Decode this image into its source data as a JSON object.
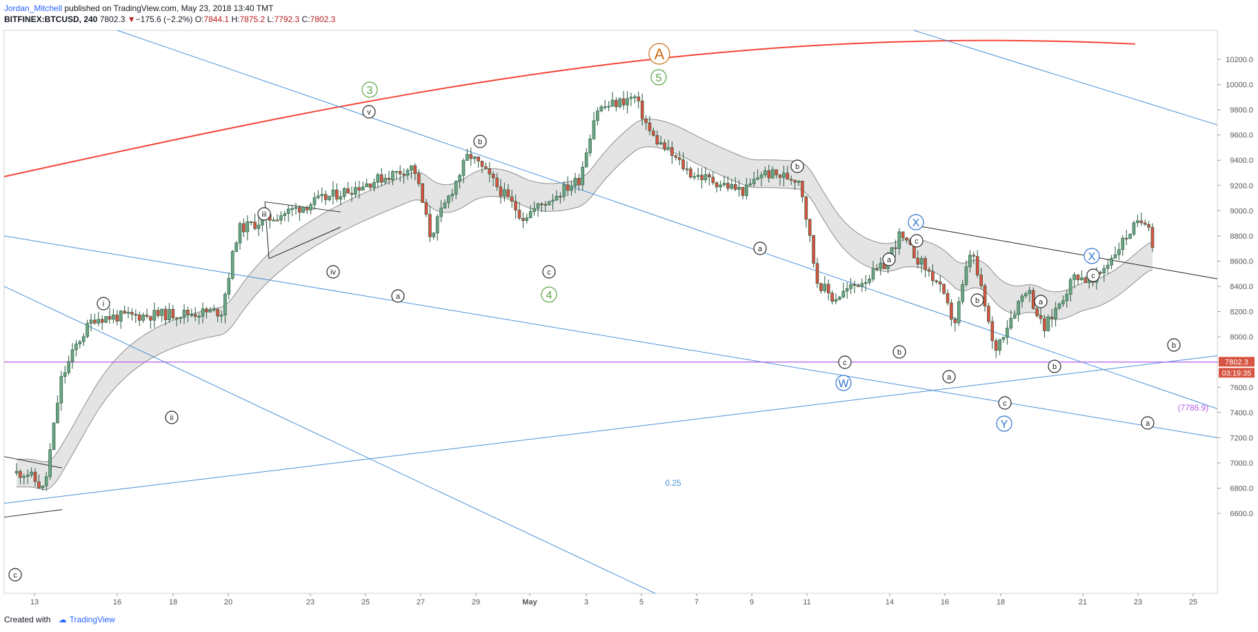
{
  "header": {
    "author": "Jordan_Mitchell",
    "published": " published on TradingView.com, May 23, 2018 13:40 TMT",
    "symbol": "BITFINEX:BTCUSD, 240",
    "last": "7802.3",
    "change": "−175.6 (−2.2%)",
    "o_label": "O:",
    "o_value": "7844.1",
    "h_label": "H:",
    "h_value": "7875.2",
    "l_label": "L:",
    "l_value": "7792.3",
    "c_label": "C:",
    "c_value": "7802.3"
  },
  "footer": {
    "created_with": "Created with",
    "brand": "TradingView"
  },
  "colors": {
    "up_fill": "#6ba583",
    "down_fill": "#d75442",
    "candle_edge": "#225437",
    "trend_blue": "#4a90d9",
    "red_channel": "#f44336",
    "support": "#b35ae8",
    "ribbon_fill": "#e4e4e4",
    "ribbon_edge": "#8c8c8c",
    "green_label": "#5ca346",
    "orange_label": "#cc6b14",
    "blue_label": "#2f73d1"
  },
  "chart_data": {
    "type": "candlestick",
    "y_axis": {
      "ticks": [
        "10200.0",
        "10000.0",
        "9800.0",
        "9600.0",
        "9400.0",
        "9200.0",
        "9000.0",
        "8800.0",
        "8600.0",
        "8400.0",
        "8200.0",
        "8000.0",
        "7800.0",
        "7600.0",
        "7400.0",
        "7200.0",
        "7000.0",
        "6800.0",
        "6600.0"
      ],
      "price_tag": "7802.3",
      "countdown": "03:19:35"
    },
    "x_axis": {
      "ticks": [
        "13",
        "16",
        "18",
        "20",
        "23",
        "25",
        "27",
        "29",
        "May",
        "3",
        "5",
        "7",
        "9",
        "11",
        "14",
        "16",
        "18",
        "21",
        "23",
        "25"
      ]
    },
    "ohlc_path": [
      [
        "13",
        6920
      ],
      [
        "13",
        6780
      ],
      [
        "13",
        7650
      ],
      [
        "13",
        7950
      ],
      [
        "13",
        8150
      ],
      [
        "16",
        8420
      ],
      [
        "16",
        8100
      ],
      [
        "18",
        7880
      ],
      [
        "18",
        8150
      ],
      [
        "20",
        8200
      ],
      [
        "20",
        8850
      ],
      [
        "23",
        8850
      ],
      [
        "23",
        8950
      ],
      [
        "25",
        9700
      ],
      [
        "25",
        8700
      ],
      [
        "27",
        9350
      ],
      [
        "27",
        8800
      ],
      [
        "29",
        9450
      ],
      [
        "29",
        9300
      ],
      [
        "May",
        8950
      ],
      [
        "3",
        9250
      ],
      [
        "3",
        9800
      ],
      [
        "5",
        9900
      ],
      [
        "5",
        9600
      ],
      [
        "7",
        9300
      ],
      [
        "9",
        9150
      ],
      [
        "9",
        9300
      ],
      [
        "11",
        9250
      ],
      [
        "11",
        8450
      ],
      [
        "11",
        8300
      ],
      [
        "14",
        8550
      ],
      [
        "14",
        8800
      ],
      [
        "16",
        8700
      ],
      [
        "16",
        8150
      ],
      [
        "18",
        8400
      ],
      [
        "18",
        8050
      ],
      [
        "21",
        8500
      ],
      [
        "21",
        8420
      ],
      [
        "23",
        8250
      ],
      [
        "23",
        7800
      ]
    ],
    "annotations": {
      "wave_A": "A",
      "wave_3": "3",
      "wave_4": "4",
      "wave_5": "5",
      "wave_W": "W",
      "wave_X1": "X",
      "wave_X2": "X",
      "wave_Y": "Y",
      "i": "i",
      "ii": "ii",
      "iii": "iii",
      "iv": "iv",
      "v": "v",
      "a": "a",
      "b": "b",
      "c": "c",
      "fib_label": "0.25",
      "support_label": "(7786.9)"
    }
  }
}
